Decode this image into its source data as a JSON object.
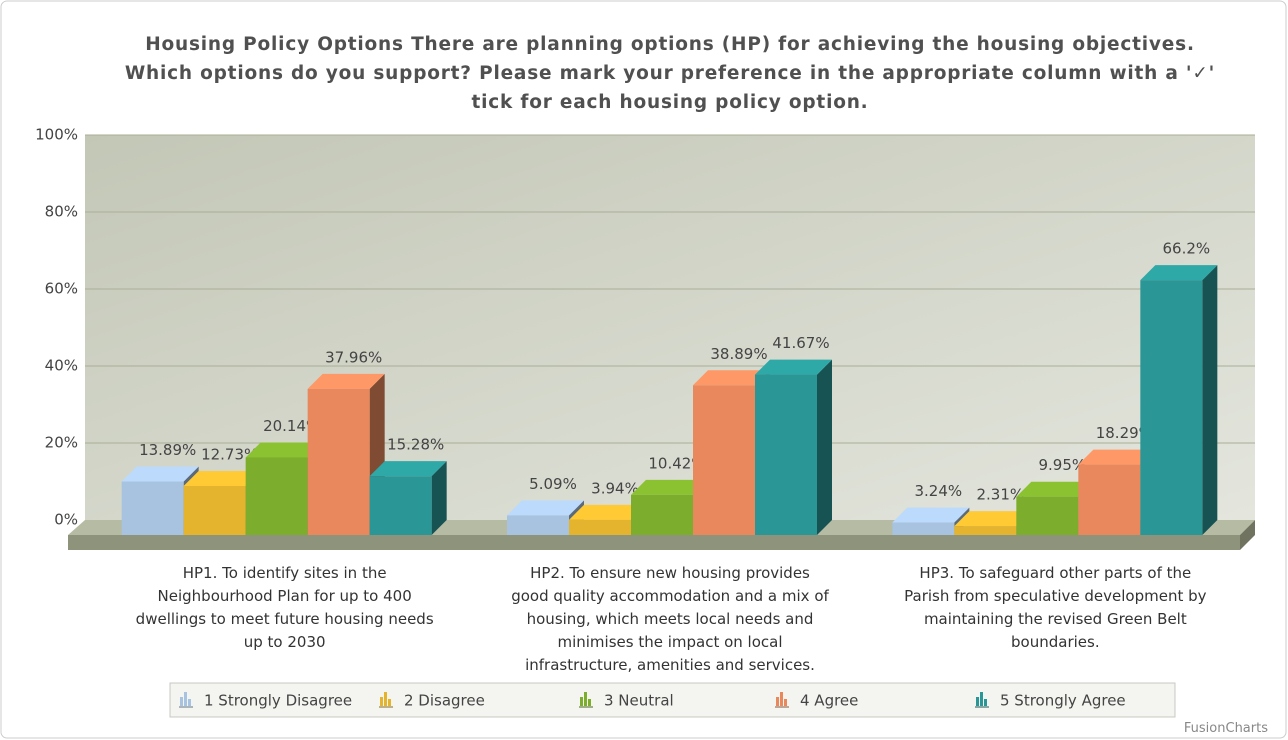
{
  "chart_data": {
    "type": "bar3d",
    "title": "Housing Policy Options There are planning options (HP) for achieving the housing objectives. Which options do you support? Please mark your preference in the appropriate column with a '✓' tick for each housing policy option.",
    "categories": [
      "HP1. To identify sites in the Neighbourhood Plan for up to 400 dwellings to meet future housing needs up to 2030",
      "HP2. To ensure new housing provides good quality accommodation and a mix of housing, which meets local needs and minimises the impact on local infrastructure, amenities and services.",
      "HP3. To safeguard other parts of the Parish from speculative development by maintaining the revised Green Belt boundaries."
    ],
    "series": [
      {
        "name": "1 Strongly Disagree",
        "color": "#a8c3e0",
        "values": [
          13.89,
          5.09,
          3.24
        ],
        "value_labels": [
          "13.89%",
          "5.09%",
          "3.24%"
        ]
      },
      {
        "name": "2 Disagree",
        "color": "#e5b42e",
        "values": [
          12.73,
          3.94,
          2.31
        ],
        "value_labels": [
          "12.73%",
          "3.94%",
          "2.31%"
        ]
      },
      {
        "name": "3 Neutral",
        "color": "#7cad2c",
        "values": [
          20.14,
          10.42,
          9.95
        ],
        "value_labels": [
          "20.14%",
          "10.42%",
          "9.95%"
        ]
      },
      {
        "name": "4 Agree",
        "color": "#e8885c",
        "values": [
          37.96,
          38.89,
          18.29
        ],
        "value_labels": [
          "37.96%",
          "38.89%",
          "18.29%"
        ]
      },
      {
        "name": "5 Strongly Agree",
        "color": "#2a9696",
        "values": [
          15.28,
          41.67,
          66.2
        ],
        "value_labels": [
          "15.28%",
          "41.67%",
          "66.2%"
        ]
      }
    ],
    "ylim": [
      0,
      100
    ],
    "yticks": [
      {
        "value": 0,
        "label": "0%"
      },
      {
        "value": 20,
        "label": "20%"
      },
      {
        "value": 40,
        "label": "40%"
      },
      {
        "value": 60,
        "label": "60%"
      },
      {
        "value": 80,
        "label": "80%"
      },
      {
        "value": 100,
        "label": "100%"
      }
    ],
    "grid": true,
    "legend": "bottom",
    "credit": "FusionCharts"
  }
}
